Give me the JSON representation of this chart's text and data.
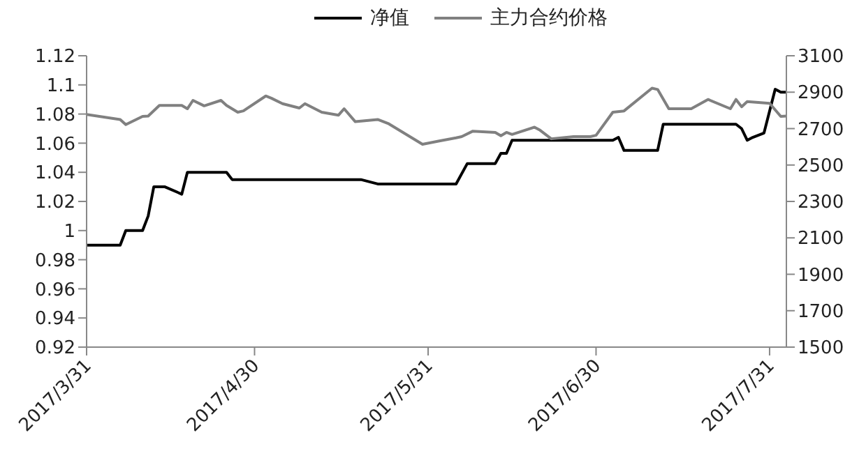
{
  "chart_data": {
    "type": "line",
    "legend": "top",
    "marker": "none",
    "line_style": "solid",
    "xlim": [
      "2017-03-31",
      "2017-08-03"
    ],
    "xticks": [
      {
        "value": "2017-03-31",
        "label": "2017/3/31"
      },
      {
        "value": "2017-04-30",
        "label": "2017/4/30"
      },
      {
        "value": "2017-05-31",
        "label": "2017/5/31"
      },
      {
        "value": "2017-06-30",
        "label": "2017/6/30"
      },
      {
        "value": "2017-07-31",
        "label": "2017/7/31"
      }
    ],
    "ylim": [
      0.92,
      1.12
    ],
    "yticks": [
      0.92,
      0.94,
      0.96,
      0.98,
      1,
      1.02,
      1.04,
      1.06,
      1.08,
      1.1,
      1.12
    ],
    "y2lim": [
      1500,
      3100
    ],
    "y2ticks": [
      1500,
      1700,
      1900,
      2100,
      2300,
      2500,
      2700,
      2900,
      3100
    ],
    "series": [
      {
        "name": "净值",
        "color": "#000000",
        "x": [
          "2017-03-31",
          "2017-04-06",
          "2017-04-07",
          "2017-04-10",
          "2017-04-11",
          "2017-04-12",
          "2017-04-14",
          "2017-04-17",
          "2017-04-18",
          "2017-04-25",
          "2017-04-26",
          "2017-05-19",
          "2017-05-22",
          "2017-06-05",
          "2017-06-07",
          "2017-06-12",
          "2017-06-13",
          "2017-06-14",
          "2017-06-15",
          "2017-07-03",
          "2017-07-04",
          "2017-07-05",
          "2017-07-11",
          "2017-07-12",
          "2017-07-25",
          "2017-07-26",
          "2017-07-27",
          "2017-07-28",
          "2017-07-30",
          "2017-08-01",
          "2017-08-02",
          "2017-08-03"
        ],
        "values": [
          0.99,
          0.99,
          1.0,
          1.0,
          1.01,
          1.03,
          1.03,
          1.025,
          1.04,
          1.04,
          1.035,
          1.035,
          1.032,
          1.032,
          1.046,
          1.046,
          1.053,
          1.053,
          1.062,
          1.062,
          1.064,
          1.055,
          1.055,
          1.073,
          1.073,
          1.07,
          1.062,
          1.064,
          1.067,
          1.097,
          1.095,
          1.095
        ]
      },
      {
        "name": "主力合约价格",
        "color": "#808080",
        "axis": "y2",
        "x": [
          "2017-03-31",
          "2017-04-06",
          "2017-04-07",
          "2017-04-10",
          "2017-04-11",
          "2017-04-13",
          "2017-04-17",
          "2017-04-18",
          "2017-04-19",
          "2017-04-21",
          "2017-04-24",
          "2017-04-25",
          "2017-04-27",
          "2017-04-28",
          "2017-05-02",
          "2017-05-03",
          "2017-05-05",
          "2017-05-08",
          "2017-05-09",
          "2017-05-12",
          "2017-05-15",
          "2017-05-16",
          "2017-05-18",
          "2017-05-22",
          "2017-05-24",
          "2017-05-30",
          "2017-06-02",
          "2017-06-05",
          "2017-06-06",
          "2017-06-08",
          "2017-06-12",
          "2017-06-13",
          "2017-06-14",
          "2017-06-15",
          "2017-06-19",
          "2017-06-20",
          "2017-06-22",
          "2017-06-26",
          "2017-06-29",
          "2017-06-30",
          "2017-07-03",
          "2017-07-05",
          "2017-07-10",
          "2017-07-11",
          "2017-07-13",
          "2017-07-17",
          "2017-07-20",
          "2017-07-24",
          "2017-07-25",
          "2017-07-26",
          "2017-07-27",
          "2017-07-31",
          "2017-08-02",
          "2017-08-03"
        ],
        "values": [
          2778,
          2750,
          2722,
          2767,
          2769,
          2827,
          2827,
          2809,
          2855,
          2825,
          2855,
          2827,
          2790,
          2797,
          2879,
          2867,
          2837,
          2813,
          2837,
          2790,
          2774,
          2809,
          2738,
          2750,
          2726,
          2614,
          2632,
          2649,
          2656,
          2686,
          2679,
          2661,
          2679,
          2668,
          2708,
          2691,
          2644,
          2656,
          2656,
          2663,
          2790,
          2797,
          2922,
          2915,
          2809,
          2809,
          2860,
          2809,
          2860,
          2820,
          2848,
          2839,
          2767,
          2769
        ]
      }
    ]
  }
}
